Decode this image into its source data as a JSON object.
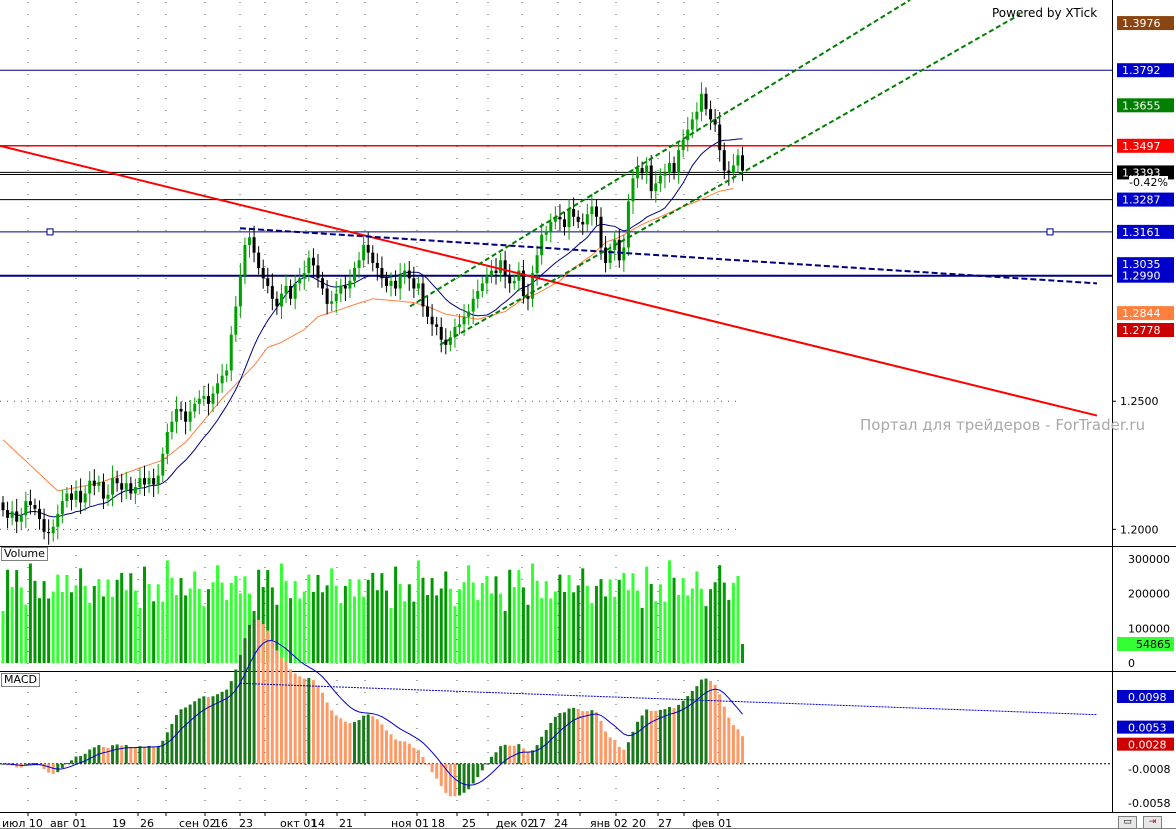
{
  "powered_by": "Powered by XTick",
  "watermark": "Портал для трейдеров - ForTrader.ru",
  "change_pct": "-0.42%",
  "panels": {
    "volume_label": "Volume",
    "macd_label": "MACD"
  },
  "colors": {
    "bull": "#00a000",
    "bear": "#000000",
    "red_line": "#ff0000",
    "channel": "#008000",
    "ma_slow": "#ff7f3f",
    "ma_fast": "#000080",
    "hline": "#000080",
    "vol_up": "#33ff33",
    "vol_down": "#009900",
    "macd_pos": "#1a7a1a",
    "macd_neg": "#ff9966",
    "macd_signal": "#0000cc"
  },
  "chart_data": [
    {
      "type": "candlestick",
      "title": "",
      "ylim": [
        1.1935,
        1.4066
      ],
      "y_ticks": [
        "1.2000",
        "1.2500"
      ],
      "x_ticks": [
        "июл 10",
        "авг 01",
        "19",
        "26",
        "сен 02",
        "16",
        "23",
        "окт 01",
        "14",
        "21",
        "ноя 01",
        "18",
        "25",
        "дек 02",
        "17",
        "24",
        "янв 02",
        "20",
        "27",
        "фев 01"
      ],
      "closes": [
        1.2075,
        1.2045,
        1.207,
        1.203,
        1.2055,
        1.211,
        1.2095,
        1.208,
        1.204,
        1.199,
        1.1985,
        1.201,
        1.206,
        1.211,
        1.214,
        1.2115,
        1.215,
        1.2105,
        1.214,
        1.219,
        1.217,
        1.2185,
        1.212,
        1.2135,
        1.22,
        1.218,
        1.2155,
        1.218,
        1.214,
        1.2165,
        1.22,
        1.2175,
        1.22,
        1.2175,
        1.221,
        1.2295,
        1.238,
        1.242,
        1.247,
        1.246,
        1.242,
        1.246,
        1.249,
        1.251,
        1.252,
        1.249,
        1.253,
        1.257,
        1.26,
        1.262,
        1.276,
        1.287,
        1.299,
        1.311,
        1.314,
        1.308,
        1.302,
        1.298,
        1.295,
        1.29,
        1.287,
        1.292,
        1.295,
        1.29,
        1.296,
        1.298,
        1.3,
        1.306,
        1.303,
        1.298,
        1.294,
        1.288,
        1.289,
        1.292,
        1.295,
        1.294,
        1.297,
        1.302,
        1.305,
        1.311,
        1.308,
        1.304,
        1.302,
        1.298,
        1.295,
        1.297,
        1.294,
        1.299,
        1.301,
        1.298,
        1.294,
        1.296,
        1.287,
        1.283,
        1.28,
        1.279,
        1.274,
        1.272,
        1.275,
        1.279,
        1.28,
        1.283,
        1.285,
        1.29,
        1.293,
        1.296,
        1.299,
        1.301,
        1.3,
        1.305,
        1.299,
        1.296,
        1.297,
        1.301,
        1.291,
        1.29,
        1.3,
        1.307,
        1.315,
        1.316,
        1.32,
        1.322,
        1.321,
        1.318,
        1.325,
        1.322,
        1.32,
        1.319,
        1.323,
        1.326,
        1.322,
        1.31,
        1.304,
        1.309,
        1.313,
        1.305,
        1.31,
        1.328,
        1.337,
        1.341,
        1.339,
        1.342,
        1.332,
        1.335,
        1.338,
        1.339,
        1.343,
        1.339,
        1.348,
        1.352,
        1.356,
        1.36,
        1.363,
        1.37,
        1.364,
        1.36,
        1.358,
        1.348,
        1.34,
        1.339,
        1.342,
        1.346,
        1.34
      ]
    },
    {
      "type": "line",
      "series": [
        {
          "values": [
            1.235,
            1.2333,
            1.2317,
            1.23,
            1.2283,
            1.2267,
            1.225,
            1.2233,
            1.2217,
            1.22,
            1.2183,
            1.2167,
            1.215,
            1.2153,
            1.2157,
            1.216,
            1.2163,
            1.2167,
            1.217,
            1.2173,
            1.2177,
            1.218,
            1.2187,
            1.2193,
            1.22,
            1.2207,
            1.2213,
            1.222,
            1.2227,
            1.2233,
            1.224,
            1.2246,
            1.2252,
            1.2258,
            1.2264,
            1.227,
            1.2284,
            1.2298,
            1.2312,
            1.2326,
            1.234,
            1.2361,
            1.2382,
            1.2404,
            1.2425,
            1.2446,
            1.2468,
            1.2489,
            1.251,
            1.2529,
            1.2547,
            1.2566,
            1.2584,
            1.2603,
            1.2621,
            1.264,
            1.2663,
            1.2687,
            1.271,
            1.2717,
            1.2723,
            1.273,
            1.274,
            1.275,
            1.276,
            1.277,
            1.278,
            1.2797,
            1.2813,
            1.283,
            1.2836,
            1.2842,
            1.2848,
            1.2853,
            1.2859,
            1.2865,
            1.2871,
            1.2877,
            1.2883,
            1.2889,
            1.2894,
            1.29,
            1.2898,
            1.2897,
            1.2895,
            1.2893,
            1.2892,
            1.289,
            1.2888,
            1.2887,
            1.2885,
            1.288,
            1.2875,
            1.287,
            1.2862,
            1.2855,
            1.2847,
            1.284,
            1.2837,
            1.2834,
            1.2831,
            1.2829,
            1.2826,
            1.2823,
            1.282,
            1.2825,
            1.283,
            1.2835,
            1.284,
            1.2845,
            1.285,
            1.2863,
            1.2875,
            1.2888,
            1.29,
            1.2907,
            1.2913,
            1.292,
            1.293,
            1.294,
            1.295,
            1.296,
            1.297,
            1.2987,
            1.3003,
            1.302,
            1.3032,
            1.3045,
            1.3058,
            1.307,
            1.3087,
            1.3103,
            1.312,
            1.3127,
            1.3133,
            1.314,
            1.315,
            1.316,
            1.317,
            1.318,
            1.319,
            1.3198,
            1.3205,
            1.3213,
            1.322,
            1.3228,
            1.3236,
            1.3244,
            1.3252,
            1.326,
            1.3267,
            1.3273,
            1.328,
            1.3288,
            1.3296,
            1.3304,
            1.3312,
            1.332,
            1.3323,
            1.3327,
            1.333
          ]
        },
        {
          "values": [
            null,
            null,
            null,
            null,
            null,
            null,
            null,
            null,
            null,
            null,
            null,
            null,
            null,
            null,
            null,
            null,
            null,
            null,
            null,
            null,
            null,
            null,
            null,
            null,
            null,
            null,
            null,
            null,
            null,
            null,
            null,
            null,
            null,
            null,
            null,
            null,
            null,
            null,
            null,
            null,
            null,
            null,
            null,
            null,
            null,
            null,
            null,
            null,
            null,
            null,
            null,
            null,
            null,
            null,
            null,
            null,
            null,
            null,
            null,
            null,
            null,
            null,
            null,
            null,
            null,
            null,
            null,
            null,
            null,
            null,
            null,
            null,
            null,
            null,
            null,
            null,
            null,
            null,
            null,
            null,
            null,
            null,
            null,
            null,
            null,
            null,
            null,
            null,
            null,
            null,
            null,
            null,
            null,
            null,
            null,
            null,
            null,
            null,
            null,
            null,
            null,
            null,
            null,
            null,
            null,
            null,
            null,
            null,
            null,
            null,
            null,
            null,
            null,
            null,
            null,
            null,
            null,
            null,
            null,
            null,
            null,
            null,
            null,
            null,
            null,
            null,
            null,
            null,
            null,
            null,
            null,
            null,
            null,
            null,
            null,
            null,
            null,
            null,
            null,
            null,
            null,
            null,
            null,
            null,
            null,
            null,
            null,
            null,
            null,
            null,
            null,
            null,
            null,
            null,
            null,
            null,
            null,
            null,
            null
          ]
        }
      ]
    },
    {
      "type": "bar",
      "title": "Volume",
      "ylim": [
        0,
        300000
      ],
      "y_ticks": [
        "300000",
        "200000",
        "100000",
        "0"
      ],
      "last_label": "54865"
    },
    {
      "type": "bar",
      "title": "MACD",
      "y_ticks": [
        "0.0098",
        "0.0053",
        "0.0028",
        "-0.0008",
        "-0.0058"
      ]
    }
  ],
  "price_tags": [
    {
      "label": "1.3976",
      "bg": "#8b4513",
      "fg": "#ffffff"
    },
    {
      "label": "1.3792",
      "bg": "#0000cc",
      "fg": "#ffffff"
    },
    {
      "label": "1.3655",
      "bg": "#008000",
      "fg": "#ffffff"
    },
    {
      "label": "1.3497",
      "bg": "#ff0000",
      "fg": "#ffffff"
    },
    {
      "label": "1.3393",
      "bg": "#000000",
      "fg": "#ffffff"
    },
    {
      "label": "1.3287",
      "bg": "#0000cc",
      "fg": "#ffffff"
    },
    {
      "label": "1.3161",
      "bg": "#0000cc",
      "fg": "#ffffff"
    },
    {
      "label": "1.3035",
      "bg": "#0000cc",
      "fg": "#ffffff"
    },
    {
      "label": "1.2990",
      "bg": "#0000cc",
      "fg": "#ffffff"
    },
    {
      "label": "1.2844",
      "bg": "#ff7f3f",
      "fg": "#ffffff"
    },
    {
      "label": "1.2778",
      "bg": "#cc0000",
      "fg": "#ffffff"
    }
  ],
  "macd_tags": [
    {
      "label": "0.0098",
      "bg": "#0000cc",
      "fg": "#ffffff"
    },
    {
      "label": "0.0053",
      "bg": "#0000cc",
      "fg": "#ffffff"
    },
    {
      "label": "0.0028",
      "bg": "#cc0000",
      "fg": "#ffffff"
    }
  ]
}
